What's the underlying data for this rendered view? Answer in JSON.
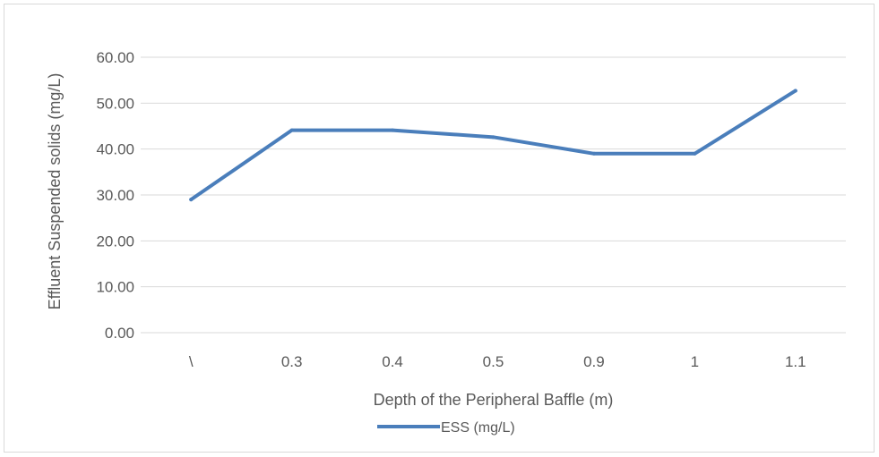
{
  "chart_data": {
    "type": "line",
    "xlabel": "Depth of the Peripheral Baffle (m)",
    "ylabel": "Effluent Suspended solids (mg/L)",
    "categories": [
      "\\",
      "0.3",
      "0.4",
      "0.5",
      "0.9",
      "1",
      "1.1"
    ],
    "series": [
      {
        "name": "ESS (mg/L)",
        "values": [
          29.0,
          44.1,
          44.1,
          42.6,
          39.0,
          39.0,
          52.7
        ],
        "color": "#4a7ebb"
      }
    ],
    "ylim": [
      0,
      60
    ],
    "yticks": [
      "0.00",
      "10.00",
      "20.00",
      "30.00",
      "40.00",
      "50.00",
      "60.00"
    ],
    "grid": true,
    "legend_position": "bottom"
  }
}
